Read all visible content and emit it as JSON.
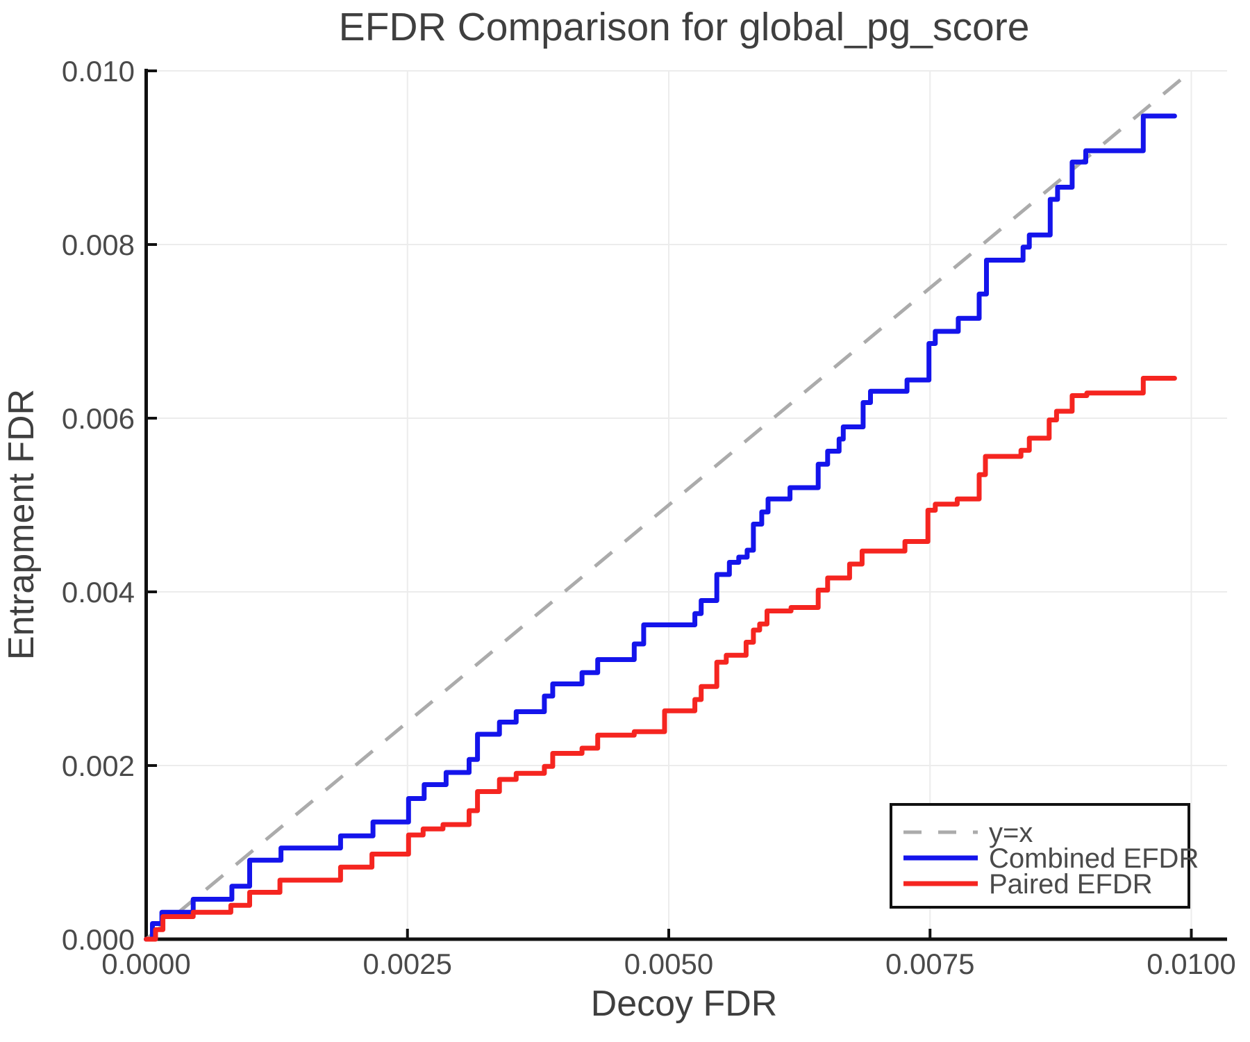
{
  "page": {
    "background": "#ffffff"
  },
  "style": {
    "grid_color": "#ececec",
    "axis_color": "#111111",
    "text_color": "#3f3f3f",
    "tick_text_color": "#4a4a4a",
    "legend_border_color": "#111111",
    "legend_bg": "#ffffff"
  },
  "chart_data": {
    "type": "line",
    "title": "EFDR Comparison for global_pg_score",
    "xlabel": "Decoy FDR",
    "ylabel": "Entrapment FDR",
    "xlim": [
      0,
      0.01034
    ],
    "ylim": [
      0,
      0.01001
    ],
    "grid": true,
    "legend_position": "lower right",
    "x_ticks": [
      {
        "v": 0.0,
        "label": "0.0000"
      },
      {
        "v": 0.0025,
        "label": "0.0025"
      },
      {
        "v": 0.005,
        "label": "0.0050"
      },
      {
        "v": 0.0075,
        "label": "0.0075"
      },
      {
        "v": 0.01,
        "label": "0.0100"
      }
    ],
    "y_ticks": [
      {
        "v": 0.0,
        "label": "0.000"
      },
      {
        "v": 0.002,
        "label": "0.002"
      },
      {
        "v": 0.004,
        "label": "0.004"
      },
      {
        "v": 0.006,
        "label": "0.006"
      },
      {
        "v": 0.008,
        "label": "0.008"
      },
      {
        "v": 0.01,
        "label": "0.010"
      }
    ],
    "reference_line": {
      "label": "y=x",
      "from": [
        0,
        0
      ],
      "to": [
        0.01,
        0.01
      ],
      "color": "#ababab",
      "dashed": true
    },
    "series": [
      {
        "name": "Combined EFDR",
        "color": "#1414eb",
        "step": true,
        "end_x": 0.00984,
        "points": [
          [
            0.0,
            0.0
          ],
          [
            6e-05,
            0.00018
          ],
          [
            0.00015,
            0.00031
          ],
          [
            0.00045,
            0.00046
          ],
          [
            0.00082,
            0.00061
          ],
          [
            0.00099,
            0.00091
          ],
          [
            0.00129,
            0.00105
          ],
          [
            0.00186,
            0.00119
          ],
          [
            0.00217,
            0.00135
          ],
          [
            0.00251,
            0.00162
          ],
          [
            0.00266,
            0.00178
          ],
          [
            0.00287,
            0.00192
          ],
          [
            0.00309,
            0.00207
          ],
          [
            0.00317,
            0.00236
          ],
          [
            0.00338,
            0.0025
          ],
          [
            0.00354,
            0.00262
          ],
          [
            0.00381,
            0.0028
          ],
          [
            0.00389,
            0.00294
          ],
          [
            0.00417,
            0.00307
          ],
          [
            0.00432,
            0.00322
          ],
          [
            0.00467,
            0.0034
          ],
          [
            0.00476,
            0.00362
          ],
          [
            0.00525,
            0.00375
          ],
          [
            0.00531,
            0.0039
          ],
          [
            0.00546,
            0.0042
          ],
          [
            0.00558,
            0.00434
          ],
          [
            0.00567,
            0.0044
          ],
          [
            0.00575,
            0.00448
          ],
          [
            0.00581,
            0.00478
          ],
          [
            0.00589,
            0.00492
          ],
          [
            0.00595,
            0.00507
          ],
          [
            0.00616,
            0.0052
          ],
          [
            0.00643,
            0.00547
          ],
          [
            0.00652,
            0.00562
          ],
          [
            0.00663,
            0.00576
          ],
          [
            0.00667,
            0.0059
          ],
          [
            0.00686,
            0.00618
          ],
          [
            0.00693,
            0.00631
          ],
          [
            0.00728,
            0.00644
          ],
          [
            0.00749,
            0.00686
          ],
          [
            0.00755,
            0.007
          ],
          [
            0.00777,
            0.00715
          ],
          [
            0.00797,
            0.00743
          ],
          [
            0.00804,
            0.00782
          ],
          [
            0.00839,
            0.00797
          ],
          [
            0.00845,
            0.00811
          ],
          [
            0.00865,
            0.00852
          ],
          [
            0.00872,
            0.00866
          ],
          [
            0.00886,
            0.00895
          ],
          [
            0.00899,
            0.00908
          ],
          [
            0.00954,
            0.00948
          ]
        ]
      },
      {
        "name": "Paired EFDR",
        "color": "#f52520",
        "step": true,
        "end_x": 0.00984,
        "points": [
          [
            0.0,
            0.0
          ],
          [
            9e-05,
            0.00011
          ],
          [
            0.00016,
            0.00026
          ],
          [
            0.00045,
            0.00031
          ],
          [
            0.00081,
            0.00039
          ],
          [
            0.00099,
            0.00054
          ],
          [
            0.00128,
            0.00068
          ],
          [
            0.00186,
            0.00083
          ],
          [
            0.00216,
            0.00098
          ],
          [
            0.00251,
            0.0012
          ],
          [
            0.00265,
            0.00127
          ],
          [
            0.00284,
            0.00132
          ],
          [
            0.00309,
            0.00148
          ],
          [
            0.00317,
            0.0017
          ],
          [
            0.00338,
            0.00184
          ],
          [
            0.00354,
            0.00191
          ],
          [
            0.00381,
            0.00199
          ],
          [
            0.00389,
            0.00214
          ],
          [
            0.00417,
            0.0022
          ],
          [
            0.00432,
            0.00235
          ],
          [
            0.00467,
            0.00239
          ],
          [
            0.00496,
            0.00263
          ],
          [
            0.00525,
            0.00276
          ],
          [
            0.00531,
            0.00291
          ],
          [
            0.00546,
            0.00319
          ],
          [
            0.00555,
            0.00327
          ],
          [
            0.00574,
            0.00342
          ],
          [
            0.00581,
            0.00356
          ],
          [
            0.00587,
            0.00363
          ],
          [
            0.00594,
            0.00378
          ],
          [
            0.00617,
            0.00382
          ],
          [
            0.00643,
            0.00402
          ],
          [
            0.00652,
            0.00416
          ],
          [
            0.00673,
            0.00432
          ],
          [
            0.00685,
            0.00447
          ],
          [
            0.00726,
            0.00458
          ],
          [
            0.00748,
            0.00494
          ],
          [
            0.00755,
            0.00501
          ],
          [
            0.00776,
            0.00507
          ],
          [
            0.00797,
            0.00535
          ],
          [
            0.00803,
            0.00556
          ],
          [
            0.00837,
            0.00563
          ],
          [
            0.00845,
            0.00577
          ],
          [
            0.00864,
            0.00598
          ],
          [
            0.00871,
            0.00608
          ],
          [
            0.00886,
            0.00626
          ],
          [
            0.009,
            0.00629
          ],
          [
            0.00954,
            0.00646
          ]
        ]
      }
    ],
    "legend": {
      "items": [
        {
          "label": "y=x",
          "color": "#ababab",
          "dashed": true
        },
        {
          "label": "Combined EFDR",
          "color": "#1414eb",
          "dashed": false
        },
        {
          "label": "Paired EFDR",
          "color": "#f52520",
          "dashed": false
        }
      ]
    }
  }
}
